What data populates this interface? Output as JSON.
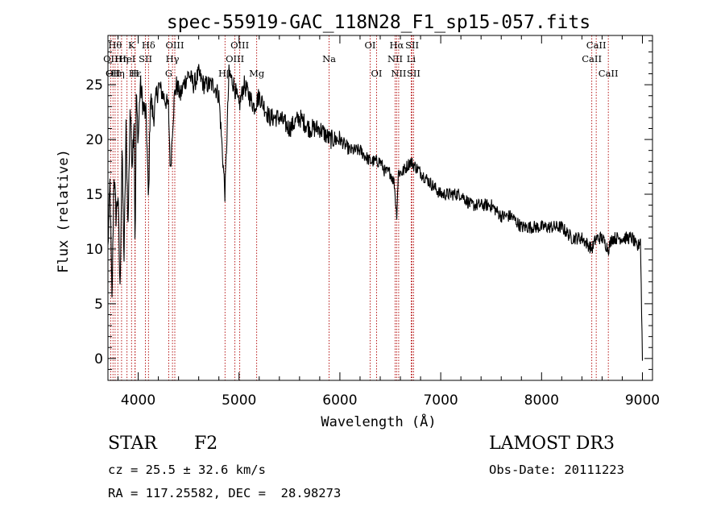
{
  "chart_data": {
    "type": "line",
    "title": "spec-55919-GAC_118N28_F1_sp15-057.fits",
    "xlabel": "Wavelength (Å)",
    "ylabel": "Flux (relative)",
    "xlim": [
      3700,
      9100
    ],
    "ylim": [
      -2,
      29.5
    ],
    "xticks": [
      4000,
      5000,
      6000,
      7000,
      8000,
      9000
    ],
    "yticks": [
      0,
      5,
      10,
      15,
      20,
      25
    ],
    "x_minor_step": 200,
    "y_minor_step": 1,
    "series": [
      {
        "name": "flux",
        "x": [
          3700,
          3720,
          3740,
          3760,
          3780,
          3800,
          3820,
          3840,
          3860,
          3880,
          3900,
          3920,
          3940,
          3960,
          3970,
          3980,
          4000,
          4020,
          4050,
          4080,
          4102,
          4120,
          4150,
          4200,
          4250,
          4300,
          4320,
          4340,
          4360,
          4380,
          4420,
          4450,
          4500,
          4550,
          4600,
          4650,
          4700,
          4750,
          4800,
          4861,
          4900,
          4950,
          5000,
          5050,
          5100,
          5150,
          5200,
          5250,
          5300,
          5400,
          5500,
          5600,
          5700,
          5800,
          5900,
          6000,
          6100,
          6200,
          6300,
          6400,
          6450,
          6500,
          6540,
          6563,
          6580,
          6620,
          6700,
          6800,
          6900,
          7000,
          7100,
          7200,
          7300,
          7400,
          7500,
          7600,
          7700,
          7800,
          7900,
          8000,
          8100,
          8200,
          8300,
          8400,
          8498,
          8542,
          8600,
          8662,
          8700,
          8800,
          8900,
          8950,
          8980,
          9000
        ],
        "y": [
          10,
          16,
          5,
          17,
          13,
          15,
          6,
          19,
          9,
          21,
          12,
          23,
          18,
          22,
          9,
          24,
          20,
          25,
          23,
          22,
          14,
          24,
          22,
          25,
          24,
          23,
          17,
          21,
          24,
          25,
          24,
          25,
          26,
          25,
          26,
          25,
          25,
          25,
          24,
          15,
          26,
          25,
          23,
          25,
          24,
          23,
          24,
          23,
          22,
          22,
          21,
          22,
          21,
          21,
          20,
          20,
          19,
          19,
          18,
          18,
          17,
          17,
          16,
          13,
          17,
          17,
          18,
          17,
          16,
          15,
          15,
          15,
          14,
          14,
          14,
          13,
          13,
          12,
          12,
          12,
          12,
          12,
          11,
          11,
          10,
          11,
          11,
          10,
          11,
          11,
          11,
          10,
          11,
          0
        ]
      }
    ],
    "lines": [
      {
        "wl": 3727,
        "labels": [
          "OII"
        ],
        "row": 2
      },
      {
        "wl": 3750,
        "labels": [
          "OII"
        ],
        "row": 3
      },
      {
        "wl": 3771,
        "labels": [
          "Hθ"
        ],
        "row": 1
      },
      {
        "wl": 3798,
        "labels": [
          "Hη"
        ],
        "row": 3
      },
      {
        "wl": 3835,
        "labels": [
          "Hη"
        ],
        "row": 2
      },
      {
        "wl": 3889,
        "labels": [
          "HeI"
        ],
        "row": 2
      },
      {
        "wl": 3934,
        "labels": [
          "K"
        ],
        "row": 1
      },
      {
        "wl": 3968,
        "labels": [
          "H"
        ],
        "row": 3
      },
      {
        "wl": 3970,
        "labels": [
          "Hε"
        ],
        "row": 3
      },
      {
        "wl": 4072,
        "labels": [
          "SII"
        ],
        "row": 2
      },
      {
        "wl": 4102,
        "labels": [
          "Hδ"
        ],
        "row": 1
      },
      {
        "wl": 4303,
        "labels": [
          "G"
        ],
        "row": 3
      },
      {
        "wl": 4340,
        "labels": [
          "Hγ"
        ],
        "row": 2
      },
      {
        "wl": 4363,
        "labels": [
          "OIII"
        ],
        "row": 1
      },
      {
        "wl": 4861,
        "labels": [
          "Hβ"
        ],
        "row": 3
      },
      {
        "wl": 4959,
        "labels": [
          "OIII"
        ],
        "row": 2
      },
      {
        "wl": 5007,
        "labels": [
          "OIII"
        ],
        "row": 1
      },
      {
        "wl": 5175,
        "labels": [
          "Mg"
        ],
        "row": 3
      },
      {
        "wl": 5893,
        "labels": [
          "Na"
        ],
        "row": 2
      },
      {
        "wl": 6300,
        "labels": [
          "OI"
        ],
        "row": 1
      },
      {
        "wl": 6364,
        "labels": [
          "OI"
        ],
        "row": 3
      },
      {
        "wl": 6548,
        "labels": [
          "NII"
        ],
        "row": 2
      },
      {
        "wl": 6563,
        "labels": [
          "Hα"
        ],
        "row": 1
      },
      {
        "wl": 6583,
        "labels": [
          "NII"
        ],
        "row": 3
      },
      {
        "wl": 6707,
        "labels": [
          "Li"
        ],
        "row": 2
      },
      {
        "wl": 6716,
        "labels": [
          "SII"
        ],
        "row": 1
      },
      {
        "wl": 6731,
        "labels": [
          "SII"
        ],
        "row": 3
      },
      {
        "wl": 8498,
        "labels": [
          "CaII"
        ],
        "row": 2
      },
      {
        "wl": 8542,
        "labels": [
          "CaII"
        ],
        "row": 1
      },
      {
        "wl": 8662,
        "labels": [
          "CaII"
        ],
        "row": 3
      }
    ],
    "line_color": "#b00000",
    "plot_color": "#000000"
  },
  "info": {
    "class": "STAR",
    "subclass": "F2",
    "survey": "LAMOST DR3",
    "cz": "cz = 25.5 ± 32.6 km/s",
    "obs_date": "Obs-Date: 20111223",
    "coords": "RA = 117.25582, DEC =  28.98273"
  }
}
